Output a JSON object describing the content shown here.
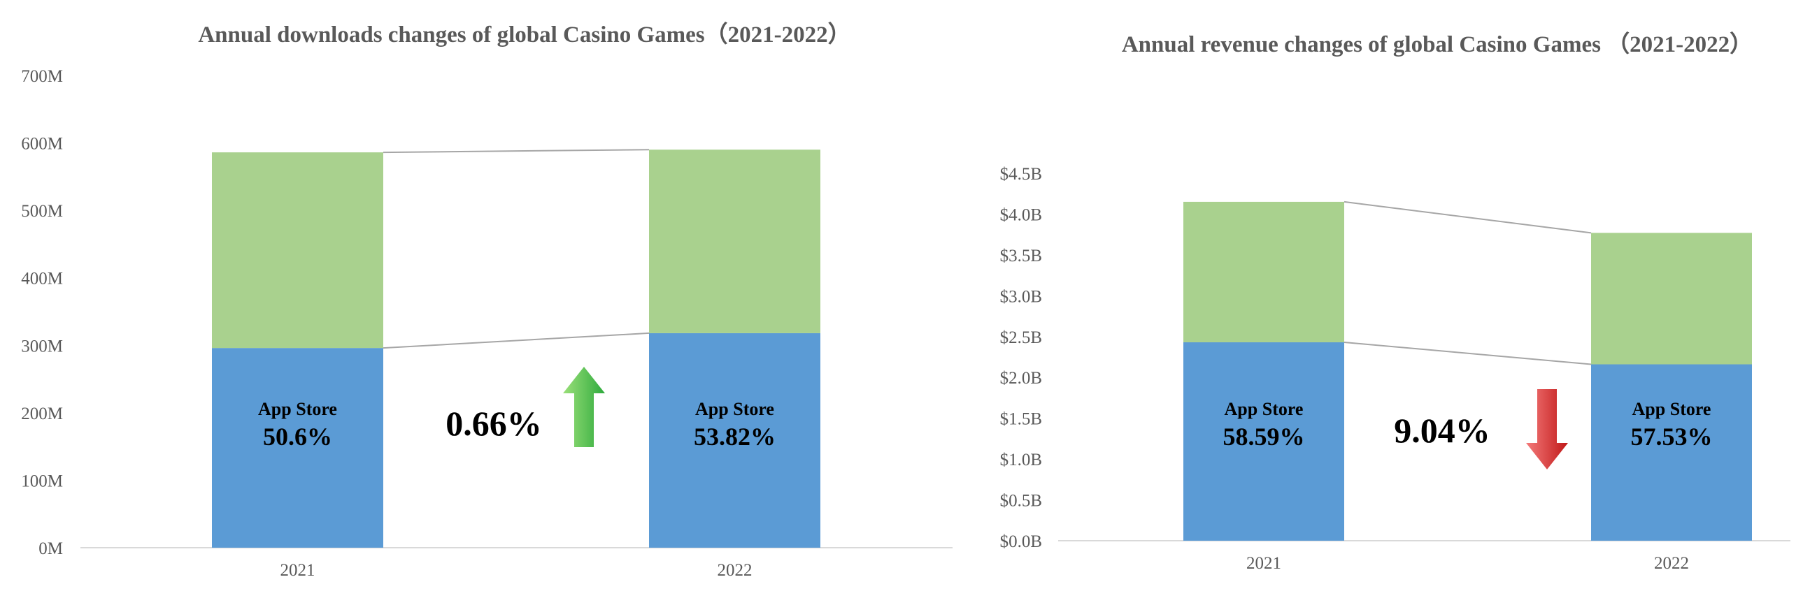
{
  "chart_data": [
    {
      "type": "bar",
      "stacked": true,
      "title": "Annual downloads changes of global Casino Games（2021-2022）",
      "categories": [
        "2021",
        "2022"
      ],
      "series": [
        {
          "values": [
            296,
            318
          ],
          "color": "#5b9bd5"
        },
        {
          "values": [
            290,
            272
          ],
          "color": "#a9d18e"
        }
      ],
      "totals": [
        586,
        590
      ],
      "ylim": [
        0,
        700
      ],
      "yticks": [
        0,
        100,
        200,
        300,
        400,
        500,
        600,
        700
      ],
      "ytick_labels": [
        "0M",
        "100M",
        "200M",
        "300M",
        "400M",
        "500M",
        "600M",
        "700M"
      ],
      "bar_labels": [
        {
          "store": "App Store",
          "share": "50.6%"
        },
        {
          "store": "App Store",
          "share": "53.82%"
        }
      ],
      "change": {
        "value": "0.66%",
        "direction": "up",
        "color": "#4caf50"
      },
      "grid": false
    },
    {
      "type": "bar",
      "stacked": true,
      "title": "Annual revenue changes of global Casino Games （2021-2022）",
      "categories": [
        "2021",
        "2022"
      ],
      "series": [
        {
          "values": [
            2.43,
            2.16
          ],
          "color": "#5b9bd5"
        },
        {
          "values": [
            1.72,
            1.61
          ],
          "color": "#a9d18e"
        }
      ],
      "totals": [
        4.15,
        3.77
      ],
      "ylim": [
        0,
        4.5
      ],
      "yticks": [
        0,
        0.5,
        1,
        1.5,
        2,
        2.5,
        3,
        3.5,
        4,
        4.5
      ],
      "ytick_labels": [
        "$0.0B",
        "$0.5B",
        "$1.0B",
        "$1.5B",
        "$2.0B",
        "$2.5B",
        "$3.0B",
        "$3.5B",
        "$4.0B",
        "$4.5B"
      ],
      "bar_labels": [
        {
          "store": "App Store",
          "share": "58.59%"
        },
        {
          "store": "App Store",
          "share": "57.53%"
        }
      ],
      "change": {
        "value": "9.04%",
        "direction": "down",
        "color": "#d32f2f"
      },
      "grid": false
    }
  ]
}
